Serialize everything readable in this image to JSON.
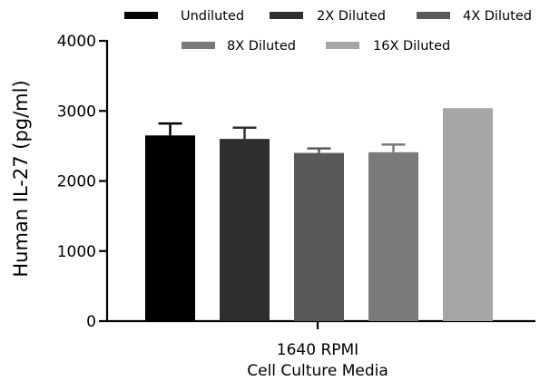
{
  "chart_data": {
    "type": "bar",
    "categories": [
      "1640 RPMI"
    ],
    "xlabel_lines": [
      "1640 RPMI",
      "Cell Culture Media"
    ],
    "ylabel": "Human IL-27 (pg/ml)",
    "ylim": [
      0,
      4000
    ],
    "yticks": [
      0,
      1000,
      2000,
      3000,
      4000
    ],
    "ytick_labels": [
      "0",
      "1000",
      "2000",
      "3000",
      "4000"
    ],
    "grid": false,
    "legend_position": "top",
    "series": [
      {
        "name": "Undiluted",
        "color": "#000000",
        "values": [
          2650
        ],
        "error": [
          170
        ]
      },
      {
        "name": "2X Diluted",
        "color": "#2e2e2e",
        "values": [
          2600
        ],
        "error": [
          160
        ]
      },
      {
        "name": "4X Diluted",
        "color": "#595959",
        "values": [
          2400
        ],
        "error": [
          65
        ]
      },
      {
        "name": "8X Diluted",
        "color": "#7a7a7a",
        "values": [
          2410
        ],
        "error": [
          110
        ]
      },
      {
        "name": "16X Diluted",
        "color": "#a6a6a7",
        "values": [
          3040
        ],
        "error": [
          0
        ]
      }
    ]
  }
}
